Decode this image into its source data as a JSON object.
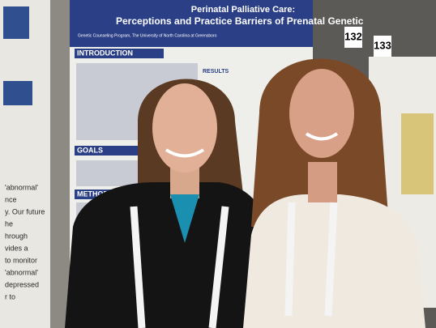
{
  "poster": {
    "title_line1": "Perinatal Palliative Care:",
    "title_line2": "Perceptions and Practice Barriers of Prenatal Genetic",
    "affiliation": "Genetic Counseling Program, The University of North Carolina at Greensboro",
    "sections": [
      "INTRODUCTION",
      "RESULTS",
      "GOALS",
      "METHODS"
    ]
  },
  "signs": [
    "132",
    "133"
  ],
  "left_poster_lines": [
    "'abnormal'",
    "nce",
    "y. Our future",
    "he",
    "hrough",
    "vides a",
    "to monitor",
    "'abnormal'",
    "depressed",
    "r to"
  ]
}
